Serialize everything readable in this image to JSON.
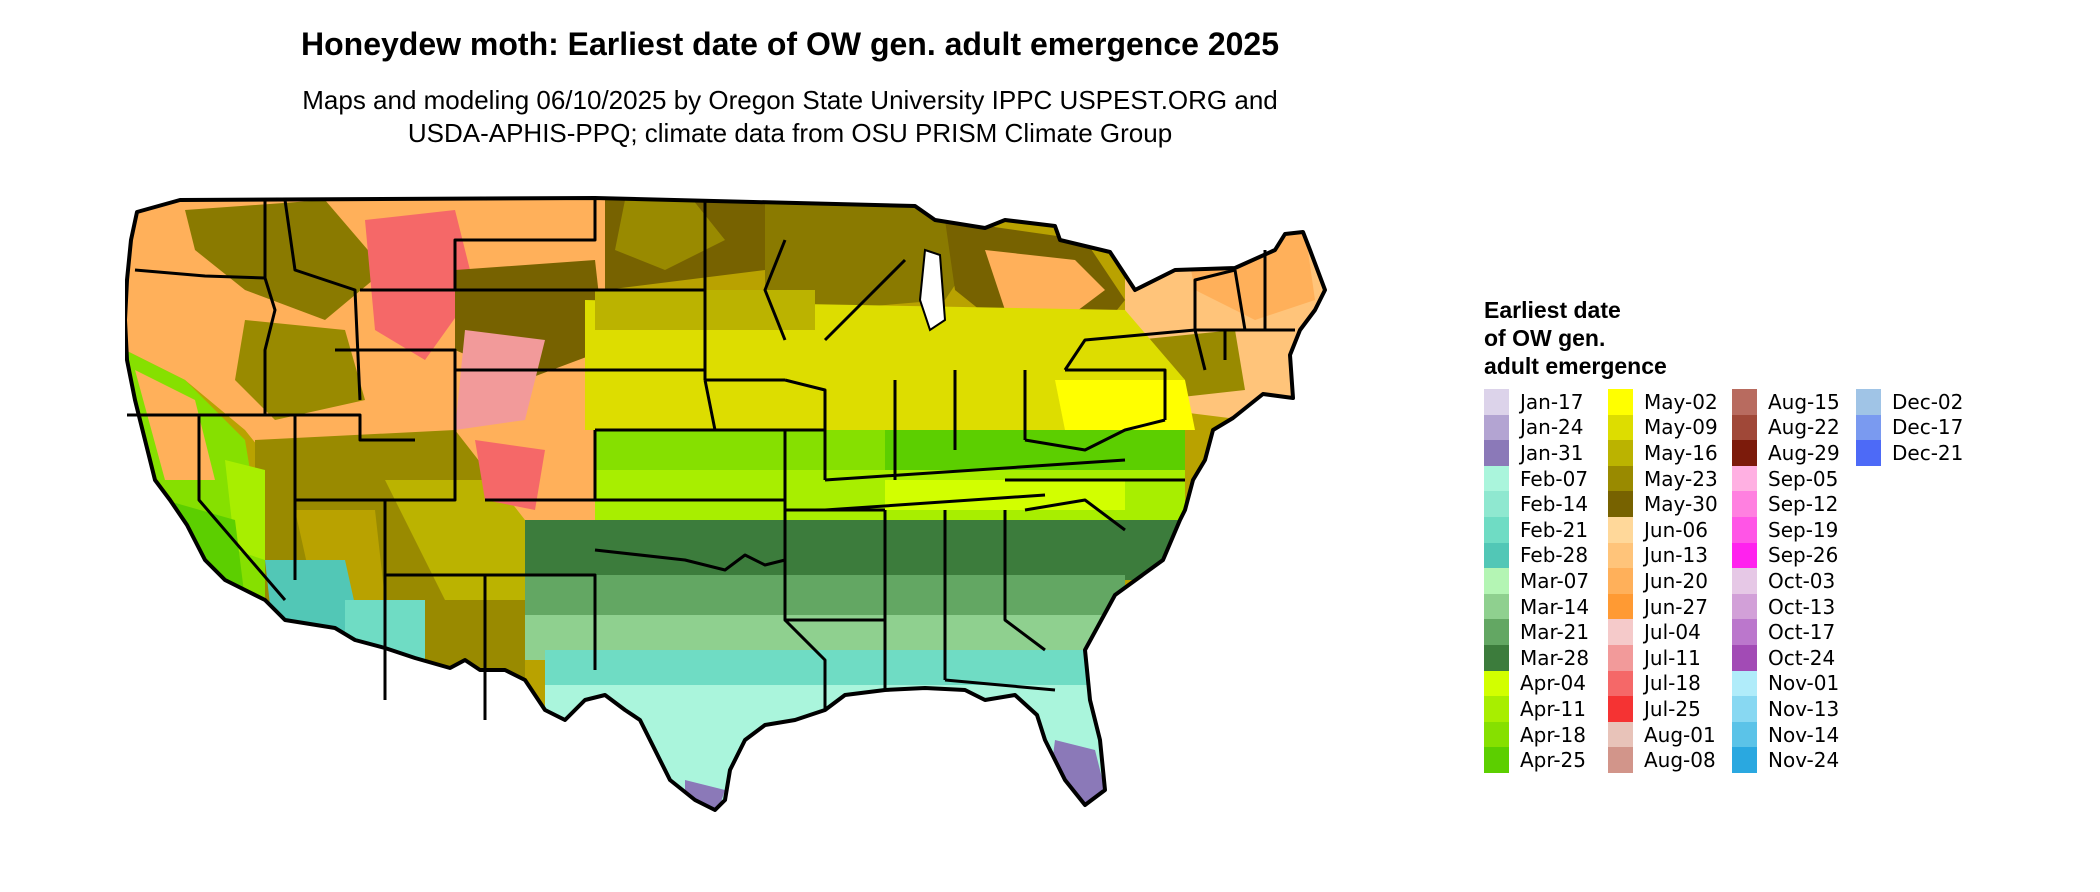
{
  "title": "Honeydew moth: Earliest date of OW gen. adult emergence 2025",
  "subtitle": [
    "Maps and modeling 06/10/2025 by Oregon State University IPPC USPEST.ORG and",
    "USDA-APHIS-PPQ; climate data from OSU PRISM Climate Group"
  ],
  "legend": {
    "title": [
      "Earliest date",
      "of OW gen.",
      "adult emergence"
    ],
    "columns": [
      [
        {
          "label": "Jan-17",
          "color": "#dcd3ea"
        },
        {
          "label": "Jan-24",
          "color": "#b3a4d2"
        },
        {
          "label": "Jan-31",
          "color": "#8b79b8"
        },
        {
          "label": "Feb-07",
          "color": "#aaf5dc"
        },
        {
          "label": "Feb-14",
          "color": "#8fe8d0"
        },
        {
          "label": "Feb-21",
          "color": "#6fdcc4"
        },
        {
          "label": "Feb-28",
          "color": "#52c7b6"
        },
        {
          "label": "Mar-07",
          "color": "#b4f5b4"
        },
        {
          "label": "Mar-14",
          "color": "#8fd08f"
        },
        {
          "label": "Mar-21",
          "color": "#63a763"
        },
        {
          "label": "Mar-28",
          "color": "#3c7c3c"
        },
        {
          "label": "Apr-04",
          "color": "#d2ff00"
        },
        {
          "label": "Apr-11",
          "color": "#a8ee00"
        },
        {
          "label": "Apr-18",
          "color": "#86e000"
        },
        {
          "label": "Apr-25",
          "color": "#5ccf00"
        }
      ],
      [
        {
          "label": "May-02",
          "color": "#ffff00"
        },
        {
          "label": "May-09",
          "color": "#dddd00"
        },
        {
          "label": "May-16",
          "color": "#bbb300"
        },
        {
          "label": "May-23",
          "color": "#998a00"
        },
        {
          "label": "May-30",
          "color": "#776200"
        },
        {
          "label": "Jun-06",
          "color": "#ffd89a"
        },
        {
          "label": "Jun-13",
          "color": "#ffc47a"
        },
        {
          "label": "Jun-20",
          "color": "#ffb05a"
        },
        {
          "label": "Jun-27",
          "color": "#ff9a33"
        },
        {
          "label": "Jul-04",
          "color": "#f5caca"
        },
        {
          "label": "Jul-11",
          "color": "#f29a9a"
        },
        {
          "label": "Jul-18",
          "color": "#f56868"
        },
        {
          "label": "Jul-25",
          "color": "#f53333"
        },
        {
          "label": "Aug-01",
          "color": "#e8c3b9"
        },
        {
          "label": "Aug-08",
          "color": "#d2958a"
        }
      ],
      [
        {
          "label": "Aug-15",
          "color": "#b86b5f"
        },
        {
          "label": "Aug-22",
          "color": "#a04838"
        },
        {
          "label": "Aug-29",
          "color": "#7c1b0b"
        },
        {
          "label": "Sep-05",
          "color": "#ffb0e2"
        },
        {
          "label": "Sep-12",
          "color": "#ff80e0"
        },
        {
          "label": "Sep-19",
          "color": "#ff55e6"
        },
        {
          "label": "Sep-26",
          "color": "#ff22ee"
        },
        {
          "label": "Oct-03",
          "color": "#e6c8e6"
        },
        {
          "label": "Oct-13",
          "color": "#d2a0d8"
        },
        {
          "label": "Oct-17",
          "color": "#bb77cc"
        },
        {
          "label": "Oct-24",
          "color": "#a24bb5"
        },
        {
          "label": "Nov-01",
          "color": "#b0ecfa"
        },
        {
          "label": "Nov-13",
          "color": "#88d8f2"
        },
        {
          "label": "Nov-14",
          "color": "#5bc3e8"
        },
        {
          "label": "Nov-24",
          "color": "#2aa8e0"
        }
      ],
      [
        {
          "label": "Dec-02",
          "color": "#a0c4e6"
        },
        {
          "label": "Dec-17",
          "color": "#7a9af0"
        },
        {
          "label": "Dec-21",
          "color": "#4d6af7"
        }
      ]
    ]
  }
}
